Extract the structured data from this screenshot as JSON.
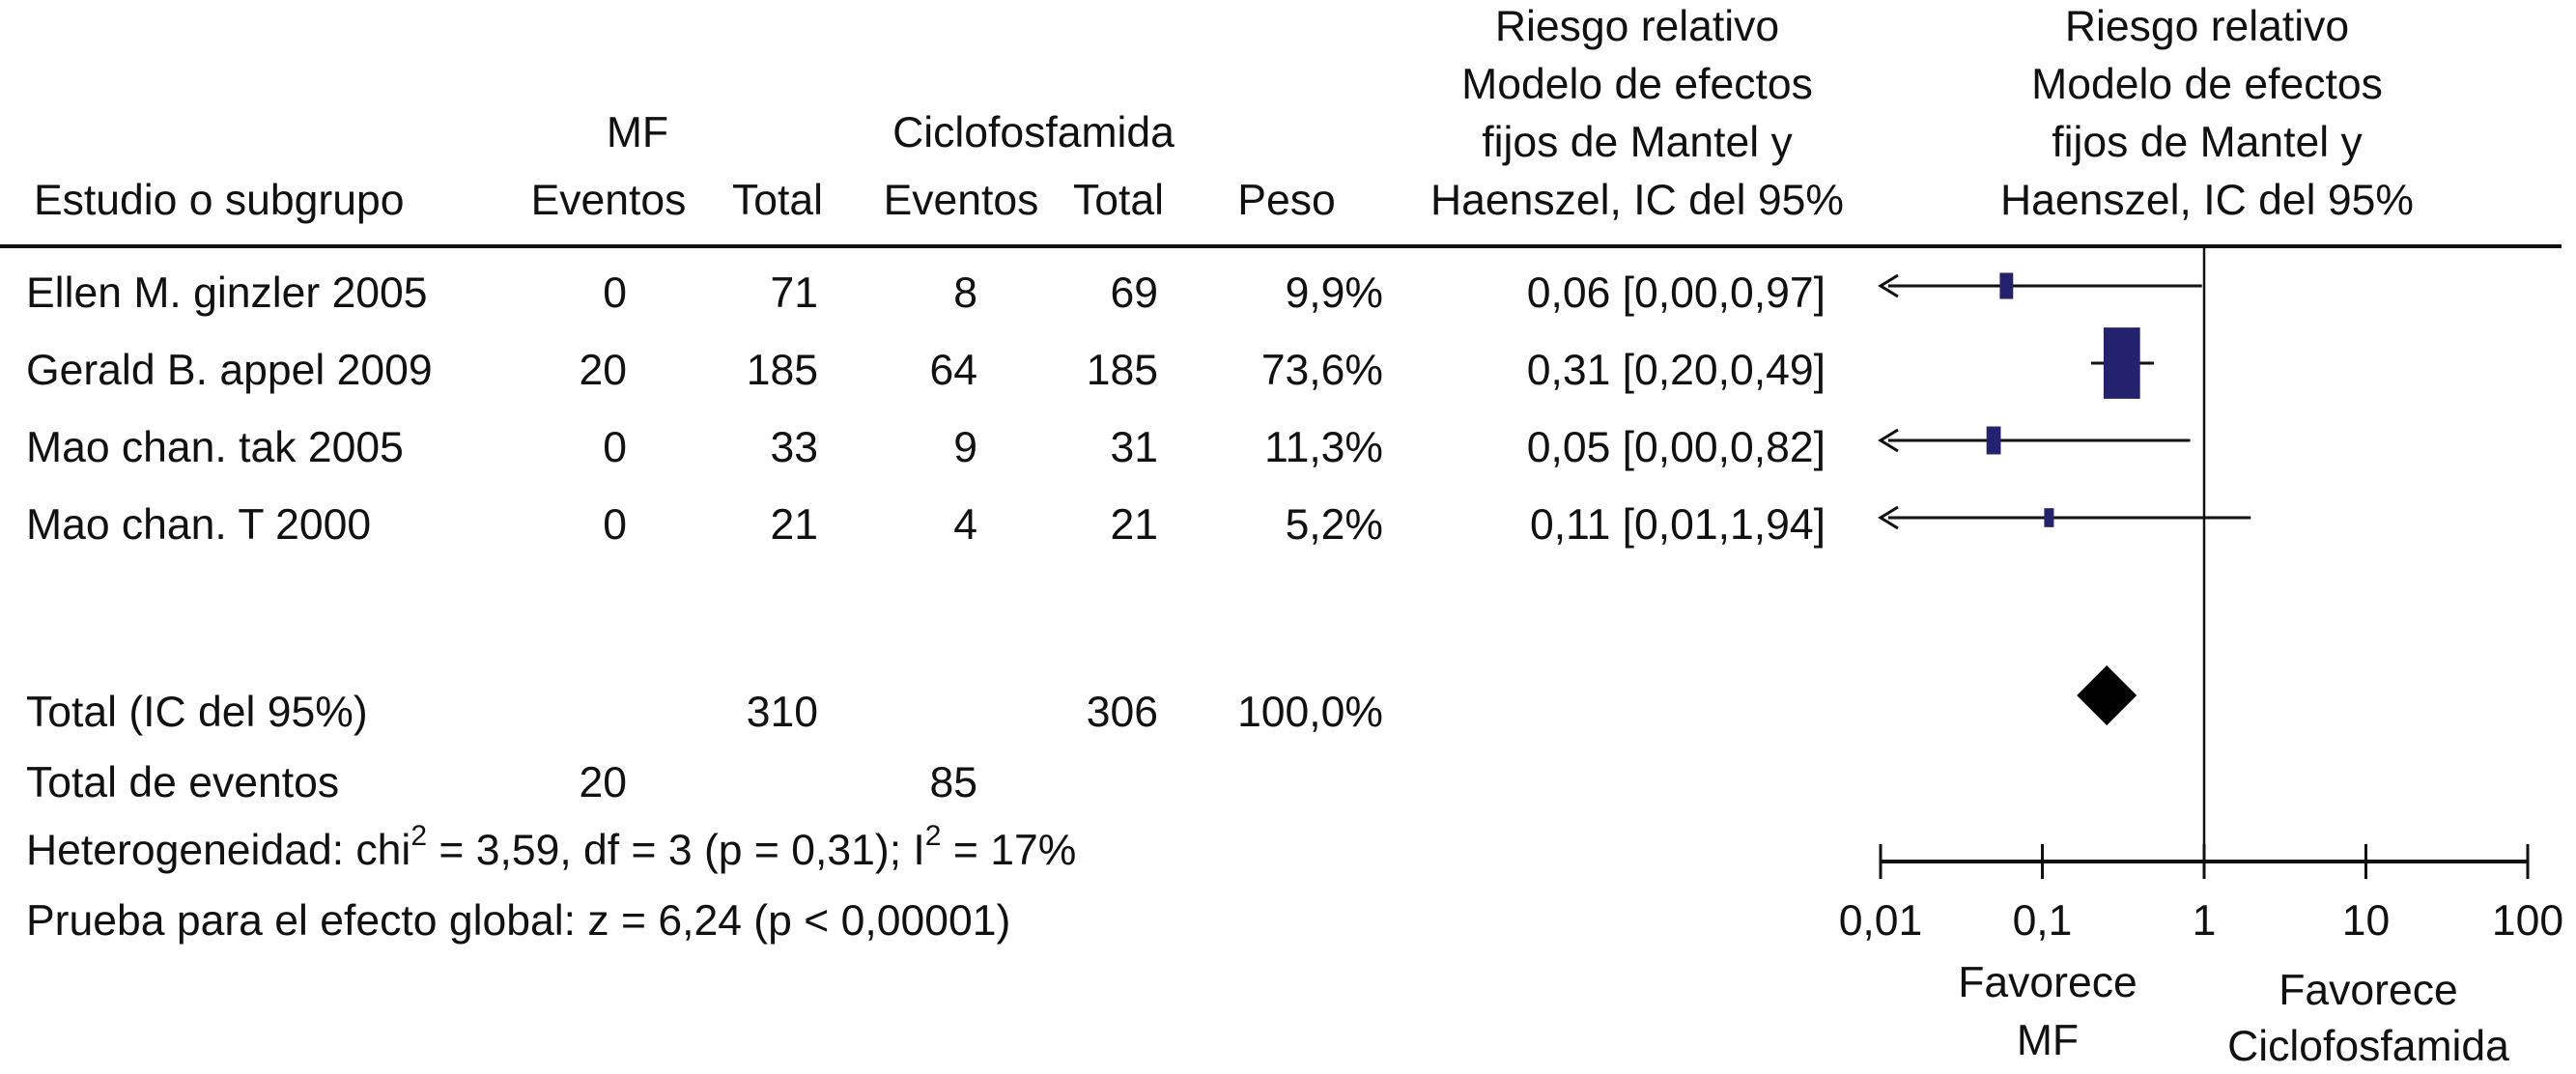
{
  "headers": {
    "study": "Estudio o subgrupo",
    "mf_group": "MF",
    "mf_events": "Eventos",
    "mf_total": "Total",
    "cyc_group": "Ciclofosfamida",
    "cyc_events": "Eventos",
    "cyc_total": "Total",
    "weight": "Peso",
    "rr_table": [
      "Riesgo relativo",
      "Modelo de efectos",
      "fijos de Mantel y",
      "Haenszel, IC del 95%"
    ],
    "rr_plot": [
      "Riesgo relativo",
      "Modelo de efectos",
      "fijos de Mantel y",
      "Haenszel, IC del 95%"
    ]
  },
  "chart_data": {
    "type": "forest",
    "scale": "log",
    "xlim": [
      0.01,
      100
    ],
    "null_line": 1,
    "x_ticks": [
      0.01,
      0.1,
      1,
      10,
      100
    ],
    "x_tick_labels": [
      "0,01",
      "0,1",
      "1",
      "10",
      "100"
    ],
    "studies": [
      {
        "name": "Ellen M. ginzler 2005",
        "mf_events": "0",
        "mf_total": "71",
        "cyc_events": "8",
        "cyc_total": "69",
        "weight": "9,9%",
        "ci_text": "0,06 [0,00,0,97]",
        "rr": 0.06,
        "lo": 0.0,
        "hi": 0.97,
        "weight_value": 9.9
      },
      {
        "name": "Gerald B. appel 2009",
        "mf_events": "20",
        "mf_total": "185",
        "cyc_events": "64",
        "cyc_total": "185",
        "weight": "73,6%",
        "ci_text": "0,31 [0,20,0,49]",
        "rr": 0.31,
        "lo": 0.2,
        "hi": 0.49,
        "weight_value": 73.6
      },
      {
        "name": "Mao chan. tak 2005",
        "mf_events": "0",
        "mf_total": "33",
        "cyc_events": "9",
        "cyc_total": "31",
        "weight": "11,3%",
        "ci_text": "0,05 [0,00,0,82]",
        "rr": 0.05,
        "lo": 0.0,
        "hi": 0.82,
        "weight_value": 11.3
      },
      {
        "name": "Mao chan. T 2000",
        "mf_events": "0",
        "mf_total": "21",
        "cyc_events": "4",
        "cyc_total": "21",
        "weight": "5,2%",
        "ci_text": "0,11 [0,01,1,94]",
        "rr": 0.11,
        "lo": 0.01,
        "hi": 1.94,
        "weight_value": 5.2
      }
    ],
    "total": {
      "label": "Total (IC del 95%)",
      "mf_total": "310",
      "cyc_total": "306",
      "weight": "100,0%",
      "rr": 0.25
    },
    "total_events": {
      "label": "Total de eventos",
      "mf": "20",
      "cyc": "85"
    },
    "heterogeneity": {
      "prefix": "Heterogeneidad: chi",
      "sup1": "2",
      "middle": " = 3,59, df = 3 (p = 0,31); I",
      "sup2": "2",
      "suffix": " = 17%"
    },
    "overall_effect": "Prueba para el efecto global: z = 6,24 (p < 0,00001)",
    "favours_left": [
      "Favorece",
      "MF"
    ],
    "favours_right": [
      "Favorece",
      "Ciclofosfamida"
    ],
    "colors": {
      "box": "#24226e",
      "line": "#111111",
      "diamond": "#000000"
    }
  }
}
